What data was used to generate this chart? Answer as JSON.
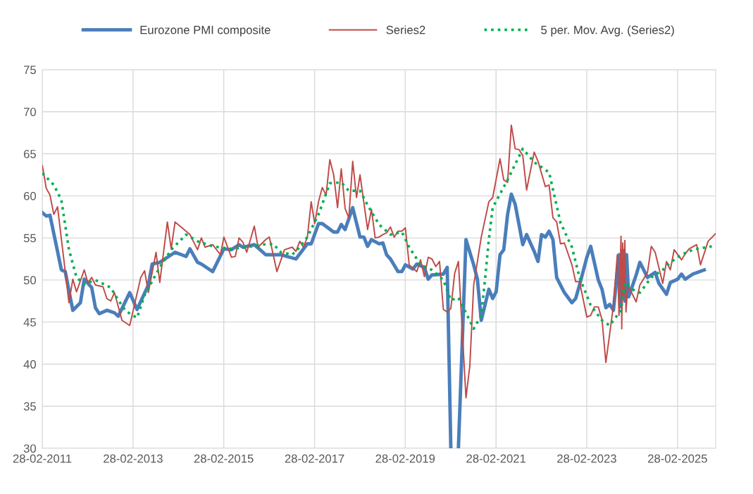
{
  "chart_data": {
    "type": "line",
    "xlim": [
      "2011-02-28",
      "2026-01-01"
    ],
    "xticks": [
      {
        "value": "2011-02-28",
        "label": "28-02-2011"
      },
      {
        "value": "2013-02-28",
        "label": "28-02-2013"
      },
      {
        "value": "2015-02-28",
        "label": "28-02-2015"
      },
      {
        "value": "2017-02-28",
        "label": "28-02-2017"
      },
      {
        "value": "2019-02-28",
        "label": "28-02-2019"
      },
      {
        "value": "2021-02-28",
        "label": "28-02-2021"
      },
      {
        "value": "2023-02-28",
        "label": "28-02-2023"
      },
      {
        "value": "2025-02-28",
        "label": "28-02-2025"
      }
    ],
    "ylim": [
      30,
      75
    ],
    "yticks": [
      30,
      35,
      40,
      45,
      50,
      55,
      60,
      65,
      70,
      75
    ],
    "grid": true,
    "legend": "top",
    "series": [
      {
        "name": "Eurozone PMI composite",
        "color": "#4a7ebb",
        "line_style": "solid",
        "x": [
          "2011-03",
          "2011-04",
          "2011-05",
          "2011-08",
          "2011-09",
          "2011-11",
          "2012-01",
          "2012-02",
          "2012-04",
          "2012-05",
          "2012-06",
          "2012-08",
          "2012-10",
          "2012-11",
          "2013-02",
          "2013-04",
          "2013-07",
          "2013-08",
          "2013-10",
          "2014-02",
          "2014-05",
          "2014-06",
          "2014-08",
          "2014-09",
          "2014-12",
          "2015-03",
          "2015-05",
          "2015-07",
          "2015-08",
          "2015-11",
          "2016-02",
          "2016-06",
          "2016-10",
          "2017-01",
          "2017-02",
          "2017-04",
          "2017-05",
          "2017-08",
          "2017-09",
          "2017-10",
          "2017-11",
          "2018-01",
          "2018-03",
          "2018-04",
          "2018-05",
          "2018-06",
          "2018-08",
          "2018-09",
          "2018-10",
          "2018-11",
          "2019-01",
          "2019-02",
          "2019-03",
          "2019-05",
          "2019-06",
          "2019-08",
          "2019-09",
          "2019-10",
          "2020-01",
          "2020-02",
          "2020-03",
          "2020-04",
          "2020-05",
          "2020-07",
          "2020-09",
          "2020-10",
          "2020-11",
          "2021-01",
          "2021-02",
          "2021-03",
          "2021-04",
          "2021-05",
          "2021-06",
          "2021-07",
          "2021-08",
          "2021-10",
          "2021-11",
          "2022-01",
          "2022-02",
          "2022-03",
          "2022-04",
          "2022-05",
          "2022-06",
          "2022-07",
          "2022-09",
          "2022-11",
          "2022-12",
          "2023-01",
          "2023-03",
          "2023-04",
          "2023-06",
          "2023-07",
          "2023-08",
          "2023-09",
          "2023-10",
          "2023-11-15",
          "2023-12-01",
          "2023-12-15",
          "2024-01-01",
          "2024-01-15",
          "2024-02-01",
          "2024-04",
          "2024-05",
          "2024-07",
          "2024-09",
          "2024-10",
          "2024-12",
          "2025-01",
          "2025-03",
          "2025-04",
          "2025-05",
          "2025-07",
          "2025-10"
        ],
        "values": [
          58.0,
          57.6,
          57.7,
          51.2,
          51.0,
          46.4,
          47.3,
          50.1,
          49.1,
          46.7,
          46.0,
          46.4,
          46.1,
          45.7,
          48.5,
          46.5,
          49.4,
          51.9,
          52.1,
          53.3,
          52.8,
          53.7,
          52.1,
          51.9,
          51.0,
          53.7,
          53.6,
          54.2,
          53.9,
          54.2,
          53.0,
          53.0,
          52.5,
          54.3,
          54.3,
          56.7,
          56.7,
          55.7,
          55.7,
          56.6,
          56.0,
          58.6,
          55.1,
          55.1,
          54.0,
          54.8,
          54.3,
          54.4,
          53.0,
          52.5,
          51.0,
          51.0,
          51.8,
          51.3,
          51.9,
          51.5,
          50.1,
          50.6,
          50.7,
          51.5,
          30,
          null,
          30,
          54.8,
          51.8,
          50.1,
          45.2,
          48.9,
          47.8,
          48.6,
          53.0,
          53.6,
          57.8,
          60.2,
          59.0,
          54.2,
          55.4,
          53.4,
          52.2,
          55.4,
          55.1,
          55.8,
          54.8,
          50.3,
          48.5,
          47.3,
          47.8,
          49.4,
          52.7,
          54.0,
          50.0,
          48.9,
          46.7,
          47.1,
          46.4,
          53.0,
          46.8,
          53.5,
          47.5,
          53.0,
          48.0,
          50.6,
          52.1,
          50.3,
          50.9,
          49.6,
          48.3,
          49.7,
          50.1,
          50.7,
          50.1,
          50.7,
          51.2
        ]
      },
      {
        "name": "Series2",
        "color": "#be4b48",
        "line_style": "solid",
        "x": [
          "2011-03",
          "2011-04",
          "2011-05",
          "2011-06",
          "2011-07",
          "2011-10",
          "2011-11",
          "2011-12",
          "2012-02",
          "2012-03",
          "2012-04",
          "2012-05",
          "2012-07",
          "2012-08",
          "2012-09",
          "2012-10",
          "2012-12",
          "2013-02",
          "2013-05",
          "2013-06",
          "2013-07",
          "2013-09",
          "2013-10",
          "2013-12",
          "2014-01",
          "2014-02",
          "2014-06",
          "2014-08",
          "2014-09",
          "2014-10",
          "2014-12",
          "2015-02",
          "2015-03",
          "2015-05",
          "2015-06",
          "2015-07",
          "2015-08",
          "2015-09",
          "2015-11",
          "2015-12",
          "2016-02",
          "2016-03",
          "2016-05",
          "2016-07",
          "2016-09",
          "2016-10",
          "2016-11",
          "2016-12",
          "2017-01",
          "2017-02",
          "2017-03",
          "2017-04",
          "2017-05",
          "2017-06",
          "2017-07",
          "2017-08",
          "2017-09",
          "2017-10",
          "2017-11",
          "2017-12",
          "2018-01",
          "2018-02",
          "2018-03",
          "2018-05",
          "2018-06",
          "2018-07",
          "2018-08",
          "2018-09",
          "2018-10",
          "2018-11",
          "2018-12",
          "2019-01",
          "2019-02",
          "2019-03",
          "2019-04",
          "2019-06",
          "2019-07",
          "2019-08",
          "2019-09",
          "2019-10",
          "2019-11",
          "2019-12",
          "2020-01",
          "2020-02",
          "2020-03",
          "2020-04",
          "2020-05",
          "2020-07",
          "2020-08",
          "2020-09",
          "2020-11",
          "2021-01",
          "2021-02",
          "2021-04",
          "2021-05",
          "2021-06",
          "2021-07",
          "2021-08",
          "2021-09",
          "2021-10",
          "2021-11",
          "2022-01",
          "2022-02",
          "2022-04",
          "2022-05",
          "2022-06",
          "2022-07",
          "2022-08",
          "2022-09",
          "2022-11",
          "2022-12",
          "2023-01",
          "2023-03",
          "2023-04",
          "2023-05",
          "2023-06",
          "2023-07",
          "2023-08",
          "2023-09",
          "2023-10",
          "2023-11-01",
          "2023-11-15",
          "2023-12-01",
          "2023-12-07",
          "2023-12-15",
          "2023-12-23",
          "2024-01-01",
          "2024-01-10",
          "2024-01-25",
          "2024-04",
          "2024-05",
          "2024-07",
          "2024-08",
          "2024-09",
          "2024-11",
          "2024-12",
          "2025-01",
          "2025-02",
          "2025-04",
          "2025-05",
          "2025-06",
          "2025-08",
          "2025-09",
          "2025-11",
          "2025-12-31"
        ],
        "values": [
          63.6,
          60.9,
          60.1,
          57.8,
          58.7,
          47.3,
          50.1,
          48.6,
          51.2,
          49.7,
          50.3,
          49.4,
          49.2,
          47.8,
          47.5,
          48.5,
          45.2,
          44.6,
          50.3,
          51.1,
          48.5,
          53.3,
          49.7,
          56.9,
          53.7,
          56.9,
          55.4,
          53.6,
          55.0,
          53.9,
          54.2,
          53.0,
          55.1,
          52.7,
          52.8,
          55.0,
          54.5,
          53.3,
          56.4,
          53.9,
          54.8,
          55.1,
          51.0,
          53.6,
          53.9,
          53.4,
          54.6,
          53.9,
          55.1,
          59.3,
          56.7,
          59.3,
          61.0,
          60.1,
          64.3,
          62.5,
          58.6,
          63.2,
          58.5,
          57.4,
          64.1,
          59.8,
          62.5,
          56.0,
          58.4,
          55.0,
          55.1,
          55.4,
          55.6,
          56.3,
          55.1,
          55.8,
          55.8,
          56.2,
          51.8,
          51.0,
          52.4,
          50.4,
          52.7,
          52.5,
          51.6,
          52.2,
          46.5,
          46.2,
          46.6,
          50.8,
          52.2,
          36.0,
          39.8,
          49.4,
          55.1,
          59.3,
          59.8,
          64.4,
          61.9,
          61.6,
          68.4,
          65.6,
          65.5,
          64.8,
          60.7,
          65.2,
          64.1,
          61.1,
          61.3,
          57.4,
          56.9,
          54.3,
          54.4,
          51.8,
          49.8,
          49.8,
          45.6,
          45.8,
          46.8,
          46.8,
          45.3,
          40.2,
          43.6,
          47.0,
          53.0,
          45.8,
          55.2,
          44.2,
          54.4,
          48.0,
          54.7,
          46.2,
          49.4,
          47.4,
          49.4,
          50.9,
          54.0,
          53.3,
          49.6,
          52.2,
          51.2,
          53.6,
          52.4,
          53.1,
          53.7,
          54.2,
          51.8,
          54.6,
          55.5
        ]
      },
      {
        "name": "5 per. Mov. Avg. (Series2)",
        "color": "#00b050",
        "line_style": "dotted",
        "x": [
          "2011-03",
          "2011-06",
          "2011-08",
          "2011-10",
          "2011-12",
          "2012-02",
          "2012-05",
          "2012-09",
          "2012-11",
          "2013-01",
          "2013-04",
          "2013-06",
          "2013-10",
          "2014-01",
          "2014-05",
          "2014-08",
          "2014-12",
          "2015-05",
          "2015-09",
          "2016-01",
          "2016-04",
          "2016-06",
          "2016-09",
          "2016-11",
          "2017-01",
          "2017-04",
          "2017-07",
          "2017-10",
          "2017-12",
          "2018-03",
          "2018-05",
          "2018-08",
          "2018-11",
          "2019-02",
          "2019-04",
          "2019-07",
          "2019-10",
          "2020-01",
          "2020-03",
          "2020-05",
          "2020-07",
          "2020-09",
          "2020-11",
          "2020-12",
          "2021-01",
          "2021-02",
          "2021-06",
          "2021-10",
          "2022-01",
          "2022-05",
          "2022-08",
          "2022-11",
          "2023-01",
          "2023-04",
          "2023-07",
          "2023-09",
          "2023-12",
          "2024-01",
          "2024-03",
          "2024-05",
          "2024-08",
          "2024-11",
          "2025-01",
          "2025-04",
          "2025-07",
          "2025-12"
        ],
        "values": [
          62.7,
          61.3,
          59.5,
          53.6,
          50.3,
          49.5,
          50.0,
          49.1,
          47.6,
          46.3,
          45.5,
          48.2,
          51.5,
          53.6,
          55.4,
          54.6,
          54.0,
          53.7,
          53.9,
          54.2,
          54.3,
          53.3,
          53.0,
          53.9,
          55.1,
          57.8,
          61.5,
          61.6,
          60.6,
          60.6,
          58.9,
          56.6,
          55.4,
          55.7,
          53.9,
          51.8,
          51.2,
          50.0,
          47.6,
          47.9,
          46.1,
          44.2,
          45.8,
          50.0,
          54.8,
          58.6,
          61.9,
          65.6,
          64.0,
          62.8,
          56.8,
          53.9,
          50.3,
          47.0,
          45.2,
          44.6,
          46.4,
          49.7,
          48.9,
          48.5,
          50.3,
          51.2,
          52.1,
          53.0,
          53.6,
          54.0
        ]
      }
    ]
  }
}
